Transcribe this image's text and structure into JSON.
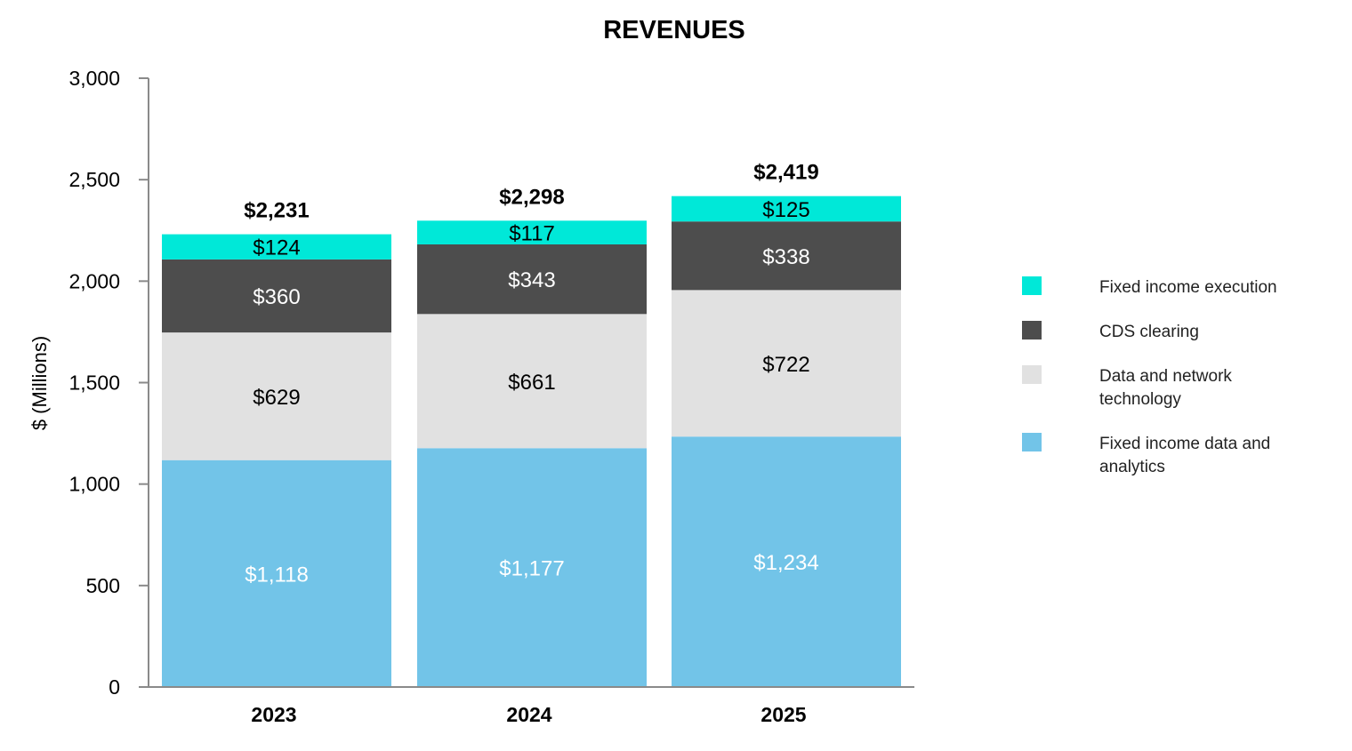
{
  "chart_data": {
    "type": "bar",
    "stacked": true,
    "title": "REVENUES",
    "ylabel": "$ (Millions)",
    "xlabel": "",
    "ylim": [
      0,
      3000
    ],
    "yticks": [
      0,
      500,
      1000,
      1500,
      2000,
      2500,
      3000
    ],
    "ytick_labels": [
      "0",
      "500",
      "1,000",
      "1,500",
      "2,000",
      "2,500",
      "3,000"
    ],
    "grid": false,
    "legend_position": "right",
    "categories": [
      "2023",
      "2024",
      "2025"
    ],
    "series": [
      {
        "name": "Fixed income data and analytics",
        "legend_lines": [
          "Fixed income data and",
          "analytics"
        ],
        "color": "#72C4E8",
        "label_color": "#ffffff",
        "values": [
          1118,
          1177,
          1234
        ],
        "labels": [
          "$1,118",
          "$1,177",
          "$1,234"
        ]
      },
      {
        "name": "Data and network technology",
        "legend_lines": [
          "Data and network",
          "technology"
        ],
        "color": "#E1E1E1",
        "label_color": "#000000",
        "values": [
          629,
          661,
          722
        ],
        "labels": [
          "$629",
          "$661",
          "$722"
        ]
      },
      {
        "name": "CDS clearing",
        "legend_lines": [
          "CDS clearing"
        ],
        "color": "#4D4D4D",
        "label_color": "#ffffff",
        "values": [
          360,
          343,
          338
        ],
        "labels": [
          "$360",
          "$343",
          "$338"
        ]
      },
      {
        "name": "Fixed income execution",
        "legend_lines": [
          "Fixed income execution"
        ],
        "color": "#00E8D8",
        "label_color": "#000000",
        "values": [
          124,
          117,
          125
        ],
        "labels": [
          "$124",
          "$117",
          "$125"
        ]
      }
    ],
    "totals": [
      2231,
      2298,
      2419
    ],
    "total_labels": [
      "$2,231",
      "$2,298",
      "$2,419"
    ],
    "legend_order": [
      3,
      2,
      1,
      0
    ]
  }
}
